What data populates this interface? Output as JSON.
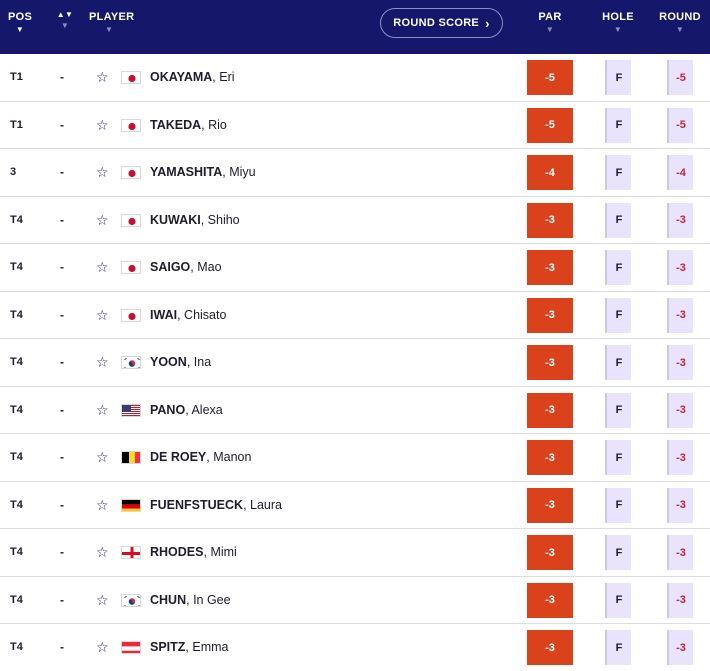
{
  "header": {
    "pos": "POS",
    "player": "PLAYER",
    "round_score": "ROUND SCORE",
    "round_score_chevron": "›",
    "par": "PAR",
    "hole": "HOLE",
    "round": "ROUND"
  },
  "colors": {
    "header_bg": "#15176b",
    "par_bg": "#d9421b",
    "cell_bg": "#e9e3fb",
    "round_text": "#c0283e"
  },
  "rows": [
    {
      "pos": "T1",
      "move": "-",
      "last": "OKAYAMA",
      "first": "Eri",
      "flag": "jp",
      "par": "-5",
      "hole": "F",
      "round": "-5"
    },
    {
      "pos": "T1",
      "move": "-",
      "last": "TAKEDA",
      "first": "Rio",
      "flag": "jp",
      "par": "-5",
      "hole": "F",
      "round": "-5"
    },
    {
      "pos": "3",
      "move": "-",
      "last": "YAMASHITA",
      "first": "Miyu",
      "flag": "jp",
      "par": "-4",
      "hole": "F",
      "round": "-4"
    },
    {
      "pos": "T4",
      "move": "-",
      "last": "KUWAKI",
      "first": "Shiho",
      "flag": "jp",
      "par": "-3",
      "hole": "F",
      "round": "-3"
    },
    {
      "pos": "T4",
      "move": "-",
      "last": "SAIGO",
      "first": "Mao",
      "flag": "jp",
      "par": "-3",
      "hole": "F",
      "round": "-3"
    },
    {
      "pos": "T4",
      "move": "-",
      "last": "IWAI",
      "first": "Chisato",
      "flag": "jp",
      "par": "-3",
      "hole": "F",
      "round": "-3"
    },
    {
      "pos": "T4",
      "move": "-",
      "last": "YOON",
      "first": "Ina",
      "flag": "kr",
      "par": "-3",
      "hole": "F",
      "round": "-3"
    },
    {
      "pos": "T4",
      "move": "-",
      "last": "PANO",
      "first": "Alexa",
      "flag": "us",
      "par": "-3",
      "hole": "F",
      "round": "-3"
    },
    {
      "pos": "T4",
      "move": "-",
      "last": "DE ROEY",
      "first": "Manon",
      "flag": "be",
      "par": "-3",
      "hole": "F",
      "round": "-3"
    },
    {
      "pos": "T4",
      "move": "-",
      "last": "FUENFSTUECK",
      "first": "Laura",
      "flag": "de",
      "par": "-3",
      "hole": "F",
      "round": "-3"
    },
    {
      "pos": "T4",
      "move": "-",
      "last": "RHODES",
      "first": "Mimi",
      "flag": "en",
      "par": "-3",
      "hole": "F",
      "round": "-3"
    },
    {
      "pos": "T4",
      "move": "-",
      "last": "CHUN",
      "first": "In Gee",
      "flag": "kr",
      "par": "-3",
      "hole": "F",
      "round": "-3"
    },
    {
      "pos": "T4",
      "move": "-",
      "last": "SPITZ",
      "first": "Emma",
      "flag": "at",
      "par": "-3",
      "hole": "F",
      "round": "-3"
    }
  ]
}
